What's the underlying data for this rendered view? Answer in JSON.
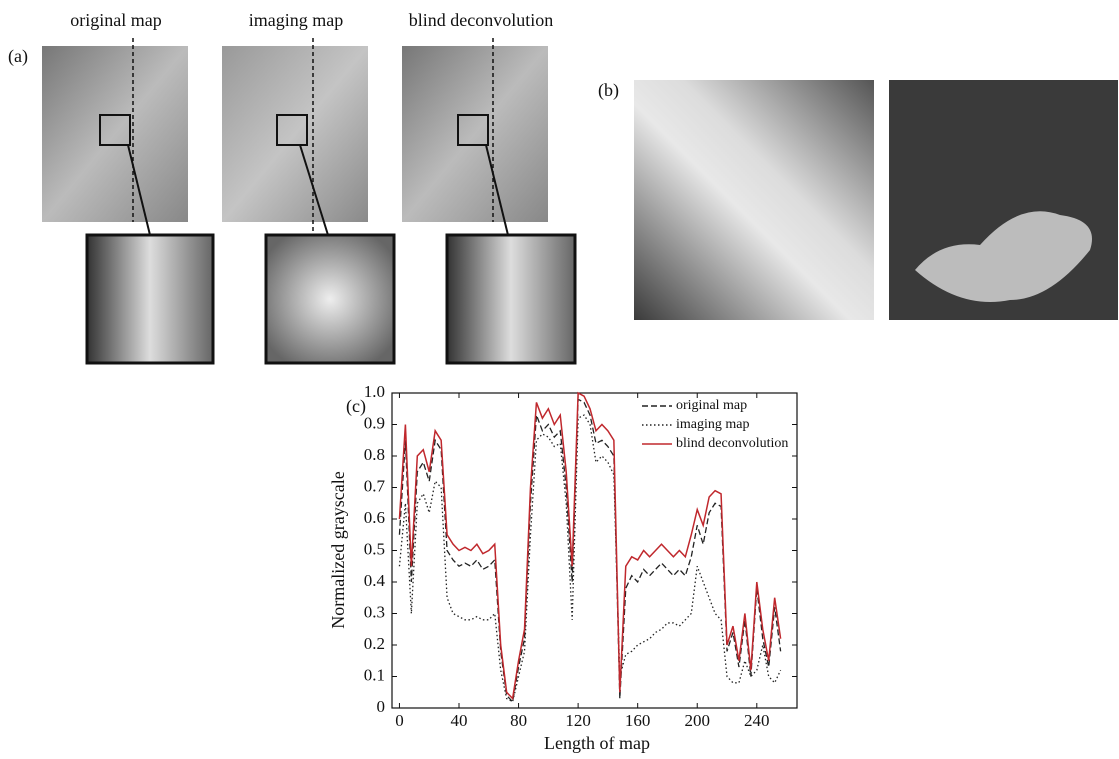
{
  "panel_a": {
    "label": "(a)",
    "titles": [
      "original map",
      "imaging map",
      "blind deconvolution"
    ]
  },
  "panel_b": {
    "label": "(b)"
  },
  "panel_c": {
    "label": "(c)"
  },
  "chart_data": {
    "type": "line",
    "x_label": "Length of map",
    "y_label": "Normalized grayscale",
    "x": [
      0,
      4,
      8,
      12,
      16,
      20,
      24,
      28,
      32,
      36,
      40,
      44,
      48,
      52,
      56,
      60,
      64,
      68,
      72,
      76,
      80,
      84,
      88,
      92,
      96,
      100,
      104,
      108,
      112,
      116,
      120,
      124,
      128,
      132,
      136,
      140,
      144,
      148,
      152,
      156,
      160,
      164,
      168,
      172,
      176,
      180,
      184,
      188,
      192,
      196,
      200,
      204,
      208,
      212,
      216,
      220,
      224,
      228,
      232,
      236,
      240,
      244,
      248,
      252,
      256
    ],
    "series": [
      {
        "name": "original map",
        "color": "#222222",
        "dash": "dashed",
        "values": [
          0.55,
          0.85,
          0.4,
          0.75,
          0.78,
          0.72,
          0.85,
          0.82,
          0.5,
          0.47,
          0.45,
          0.46,
          0.45,
          0.47,
          0.44,
          0.45,
          0.47,
          0.18,
          0.04,
          0.02,
          0.13,
          0.22,
          0.65,
          0.93,
          0.88,
          0.9,
          0.86,
          0.88,
          0.7,
          0.4,
          0.98,
          0.97,
          0.93,
          0.84,
          0.85,
          0.83,
          0.8,
          0.03,
          0.38,
          0.42,
          0.4,
          0.44,
          0.42,
          0.44,
          0.46,
          0.44,
          0.42,
          0.44,
          0.42,
          0.48,
          0.58,
          0.52,
          0.62,
          0.65,
          0.64,
          0.18,
          0.24,
          0.13,
          0.28,
          0.1,
          0.38,
          0.22,
          0.13,
          0.32,
          0.18
        ]
      },
      {
        "name": "imaging map",
        "color": "#222222",
        "dash": "dotted",
        "values": [
          0.45,
          0.65,
          0.3,
          0.65,
          0.68,
          0.62,
          0.72,
          0.7,
          0.35,
          0.3,
          0.29,
          0.28,
          0.28,
          0.29,
          0.28,
          0.28,
          0.3,
          0.12,
          0.03,
          0.02,
          0.1,
          0.18,
          0.55,
          0.85,
          0.87,
          0.86,
          0.83,
          0.84,
          0.65,
          0.28,
          0.92,
          0.93,
          0.9,
          0.78,
          0.8,
          0.78,
          0.74,
          0.1,
          0.17,
          0.18,
          0.2,
          0.21,
          0.22,
          0.24,
          0.25,
          0.27,
          0.27,
          0.26,
          0.28,
          0.3,
          0.45,
          0.4,
          0.35,
          0.3,
          0.28,
          0.1,
          0.08,
          0.08,
          0.15,
          0.1,
          0.12,
          0.2,
          0.1,
          0.08,
          0.12
        ]
      },
      {
        "name": "blind deconvolution",
        "color": "#c0282d",
        "dash": "solid",
        "values": [
          0.6,
          0.9,
          0.45,
          0.8,
          0.82,
          0.75,
          0.88,
          0.85,
          0.55,
          0.52,
          0.5,
          0.51,
          0.5,
          0.52,
          0.49,
          0.5,
          0.52,
          0.2,
          0.05,
          0.03,
          0.15,
          0.25,
          0.7,
          0.97,
          0.92,
          0.95,
          0.9,
          0.93,
          0.75,
          0.45,
          1.0,
          0.99,
          0.95,
          0.88,
          0.9,
          0.88,
          0.85,
          0.05,
          0.45,
          0.48,
          0.47,
          0.5,
          0.48,
          0.5,
          0.52,
          0.5,
          0.48,
          0.5,
          0.48,
          0.55,
          0.63,
          0.58,
          0.67,
          0.69,
          0.68,
          0.2,
          0.26,
          0.15,
          0.3,
          0.12,
          0.4,
          0.25,
          0.15,
          0.35,
          0.22
        ]
      }
    ],
    "xlim": [
      -5,
      267
    ],
    "xticks": [
      0,
      40,
      80,
      120,
      160,
      200,
      240
    ],
    "ylim": [
      0,
      1
    ],
    "yticks": [
      0,
      0.1,
      0.2,
      0.3,
      0.4,
      0.5,
      0.6,
      0.7,
      0.8,
      0.9,
      {
        "value": 1,
        "label": "1.0"
      }
    ],
    "legend": "upper right"
  }
}
